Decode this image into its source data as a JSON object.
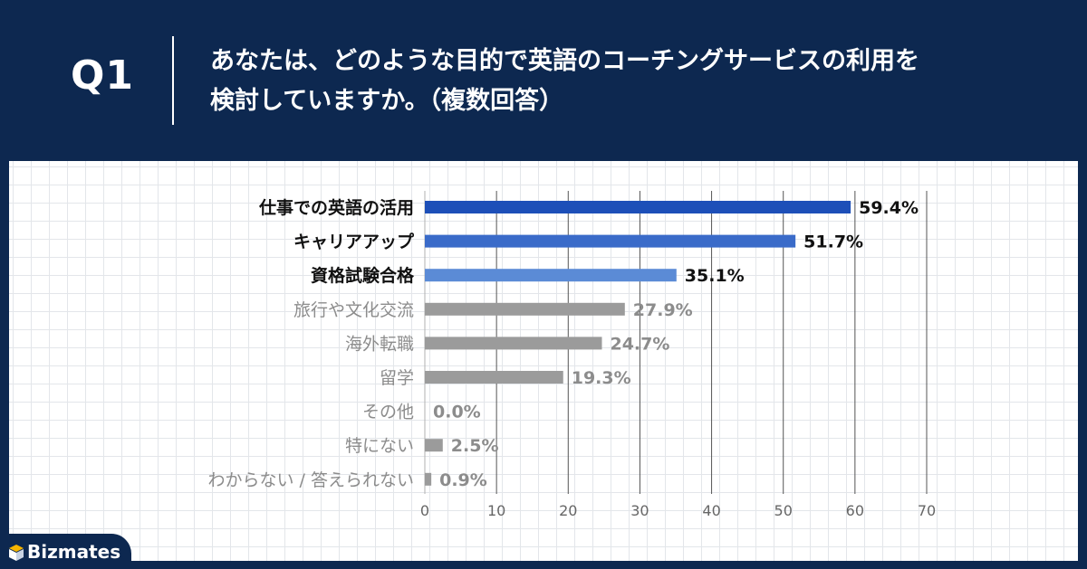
{
  "header": {
    "q_label": "Q1",
    "question_line1": "あなたは、どのような目的で英語のコーチングサービスの利用を",
    "question_line2": "検討していますか。（複数回答）"
  },
  "brand": {
    "name": "Bizmates"
  },
  "colors": {
    "header_bg": "#0d2850",
    "bar_top1": "#1d4fb8",
    "bar_top2": "#3a6bc9",
    "bar_top3": "#5b8bd6",
    "bar_other": "#9b9b9b",
    "label_dark": "#111111",
    "label_gray": "#8c8c8c"
  },
  "chart_data": {
    "type": "bar",
    "orientation": "horizontal",
    "categories": [
      "仕事での英語の活用",
      "キャリアアップ",
      "資格試験合格",
      "旅行や文化交流",
      "海外転職",
      "留学",
      "その他",
      "特にない",
      "わからない / 答えられない"
    ],
    "values": [
      59.4,
      51.7,
      35.1,
      27.9,
      24.7,
      19.3,
      0.0,
      2.5,
      0.9
    ],
    "value_labels": [
      "59.4%",
      "51.7%",
      "35.1%",
      "27.9%",
      "24.7%",
      "19.3%",
      "0.0%",
      "2.5%",
      "0.9%"
    ],
    "highlighted": [
      true,
      true,
      true,
      false,
      false,
      false,
      false,
      false,
      false
    ],
    "bar_color_keys": [
      "bar_top1",
      "bar_top2",
      "bar_top3",
      "bar_other",
      "bar_other",
      "bar_other",
      "bar_other",
      "bar_other",
      "bar_other"
    ],
    "x_ticks": [
      "0",
      "10",
      "20",
      "30",
      "40",
      "50",
      "60",
      "70"
    ],
    "xlim": [
      0,
      70
    ],
    "grid": true,
    "legend": "none",
    "title": "",
    "xlabel": "",
    "ylabel": ""
  }
}
